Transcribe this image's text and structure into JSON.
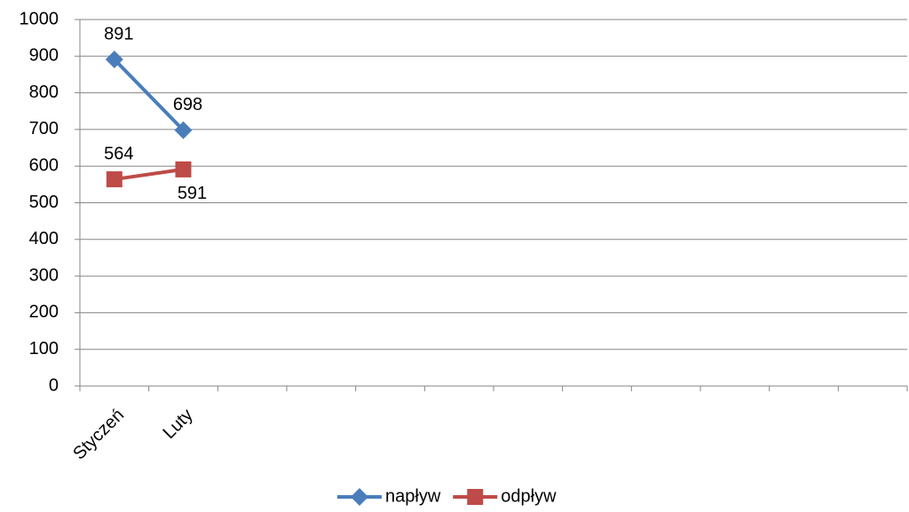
{
  "chart_data": {
    "type": "line",
    "categories": [
      "Styczeń",
      "Luty",
      null,
      null,
      null,
      null,
      null,
      null,
      null,
      null,
      null,
      null
    ],
    "series": [
      {
        "name": "napływ",
        "color": "#4a7ebb",
        "marker": "diamond",
        "values": [
          891,
          698,
          null,
          null,
          null,
          null,
          null,
          null,
          null,
          null,
          null,
          null
        ]
      },
      {
        "name": "odpływ",
        "color": "#be4b48",
        "marker": "square",
        "values": [
          564,
          591,
          null,
          null,
          null,
          null,
          null,
          null,
          null,
          null,
          null,
          null
        ]
      }
    ],
    "ylim": [
      0,
      1000
    ],
    "yticks": [
      0,
      100,
      200,
      300,
      400,
      500,
      600,
      700,
      800,
      900,
      1000
    ],
    "grid": true,
    "legend": "bottom"
  }
}
